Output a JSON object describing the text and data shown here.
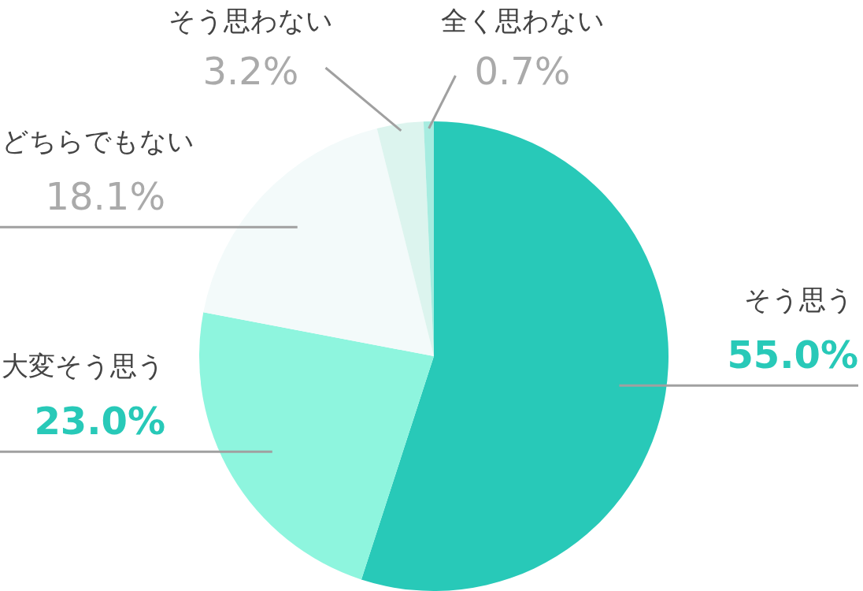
{
  "chart_data": {
    "type": "pie",
    "categories": [
      "そう思う",
      "大変そう思う",
      "どちらでもない",
      "そう思わない",
      "全く思わない"
    ],
    "values": [
      55.0,
      23.0,
      18.1,
      3.2,
      0.7
    ],
    "colors": [
      "#28c9b8",
      "#8ef5de",
      "#f3fafa",
      "#dcf4ee",
      "#a6ece0"
    ],
    "value_labels": [
      "55.0%",
      "23.0%",
      "18.1%",
      "3.2%",
      "0.7%"
    ]
  }
}
